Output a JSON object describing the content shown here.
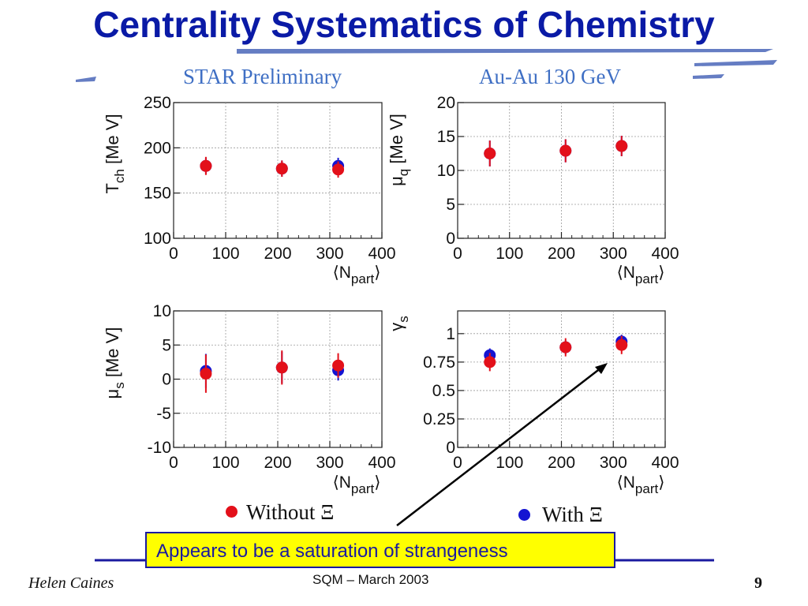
{
  "slide": {
    "title": "Centrality Systematics of Chemistry",
    "header_left": "STAR Preliminary",
    "header_right": "Au-Au 130 GeV",
    "callout": "Appears to be a saturation of strangeness",
    "footer_author": "Helen Caines",
    "footer_center": "SQM  – March 2003",
    "page_number": "9"
  },
  "legend": {
    "without_label": "Without Ξ",
    "with_label": "With Ξ",
    "without_color": "#e3101a",
    "with_color": "#1414d2"
  },
  "colors": {
    "title": "#0a1aa6",
    "header": "#3f6fc4",
    "callout_bg": "#ffff00",
    "callout_text": "#1a1aa0",
    "rule": "#1a1aa0"
  },
  "chart_data": [
    {
      "type": "scatter",
      "ylabel": "T_ch [Me V]",
      "xlabel": "<N_part>",
      "xlim": [
        0,
        400
      ],
      "ylim": [
        100,
        250
      ],
      "xticks": [
        "0",
        "100",
        "200",
        "300",
        "400"
      ],
      "yticks": [
        "100",
        "150",
        "200",
        "250"
      ],
      "grid": true,
      "series": [
        {
          "name": "Without Ξ",
          "x": [
            62,
            208,
            316
          ],
          "y": [
            180,
            177,
            176
          ],
          "yerr": [
            10,
            9,
            9
          ]
        },
        {
          "name": "With Ξ",
          "x": [
            62,
            208,
            316
          ],
          "y": [
            180,
            177,
            180
          ],
          "yerr": [
            9,
            9,
            9
          ]
        }
      ]
    },
    {
      "type": "scatter",
      "ylabel": "μ_q [Me V]",
      "xlabel": "<N_part>",
      "xlim": [
        0,
        400
      ],
      "ylim": [
        0,
        20
      ],
      "xticks": [
        "0",
        "100",
        "200",
        "300",
        "400"
      ],
      "yticks": [
        "0",
        "5",
        "10",
        "15",
        "20"
      ],
      "grid": true,
      "series": [
        {
          "name": "Without Ξ",
          "x": [
            62,
            208,
            316
          ],
          "y": [
            12.5,
            12.9,
            13.6
          ],
          "yerr": [
            1.9,
            1.7,
            1.5
          ]
        },
        {
          "name": "With Ξ",
          "x": [
            62,
            208,
            316
          ],
          "y": [
            12.5,
            12.9,
            13.6
          ],
          "yerr": [
            1.9,
            1.7,
            1.5
          ]
        }
      ]
    },
    {
      "type": "scatter",
      "ylabel": "μ_s [Me V]",
      "xlabel": "<N_part>",
      "xlim": [
        0,
        400
      ],
      "ylim": [
        -10,
        10
      ],
      "xticks": [
        "0",
        "100",
        "200",
        "300",
        "400"
      ],
      "yticks": [
        "-10",
        "-5",
        "0",
        "5",
        "10"
      ],
      "grid": true,
      "series": [
        {
          "name": "Without Ξ",
          "x": [
            62,
            208,
            316
          ],
          "y": [
            0.8,
            1.7,
            2.0
          ],
          "yerr": [
            2.8,
            2.5,
            1.8
          ]
        },
        {
          "name": "With Ξ",
          "x": [
            62,
            208,
            316
          ],
          "y": [
            1.2,
            1.7,
            1.3
          ],
          "yerr": [
            2.5,
            2.3,
            1.5
          ]
        }
      ]
    },
    {
      "type": "scatter",
      "ylabel": "γ_s",
      "xlabel": "<N_part>",
      "xlim": [
        0,
        400
      ],
      "ylim": [
        0,
        1.2
      ],
      "xticks": [
        "0",
        "100",
        "200",
        "300",
        "400"
      ],
      "yticks": [
        "0",
        "0.25",
        "0.5",
        "0.75",
        "1"
      ],
      "grid": true,
      "series": [
        {
          "name": "Without Ξ",
          "x": [
            62,
            208,
            316
          ],
          "y": [
            0.75,
            0.88,
            0.9
          ],
          "yerr": [
            0.08,
            0.08,
            0.08
          ]
        },
        {
          "name": "With Ξ",
          "x": [
            62,
            208,
            316
          ],
          "y": [
            0.81,
            0.88,
            0.93
          ],
          "yerr": [
            0.06,
            0.06,
            0.06
          ]
        }
      ]
    }
  ]
}
